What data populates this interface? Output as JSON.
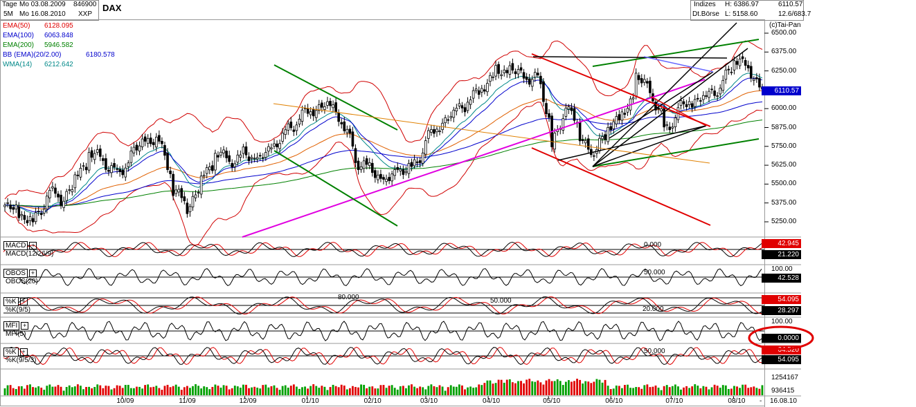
{
  "header": {
    "period_label": "Tage",
    "from_label": "Mo 03.08.2009",
    "code": "846900",
    "range_label": "5M",
    "to_label": "Mo 16.08.2010",
    "exchange_code": "XXP",
    "symbol": "DAX",
    "indices_label": "Indizes",
    "exchange_name": "Dt.Börse",
    "high_label": "H: 6386.97",
    "low_label": "L: 5158.60",
    "last_price": "6110.57",
    "change": "12.6/683.7",
    "copyright": "(c)Tai-Pan"
  },
  "indicators": [
    {
      "label": "EMA(50)",
      "value": "6128.095",
      "color": "#e00000"
    },
    {
      "label": "EMA(100)",
      "value": "6063.848",
      "color": "#0000cc"
    },
    {
      "label": "EMA(200)",
      "value": "5946.582",
      "color": "#008000"
    },
    {
      "label": "BB (EMA)(20/2.00)",
      "value": "6180.578",
      "color": "#0000cc"
    },
    {
      "label": "WMA(14)",
      "value": "6212.642",
      "color": "#008888"
    }
  ],
  "price_axis": [
    "6500.00",
    "6375.00",
    "6250.00",
    "6125.00",
    "6000.00",
    "5875.00",
    "5750.00",
    "5625.00",
    "5500.00",
    "5375.00",
    "5250.00"
  ],
  "price_tag": "6110.57",
  "panels": [
    {
      "button": "MACD",
      "name": "MACD(12/26/9)",
      "level_label": "0.000",
      "value1": "42.945",
      "value2": "21.220",
      "color1": "#e00000",
      "color2": "#000000"
    },
    {
      "button": "OBOS",
      "name": "OBOS(20)",
      "level_label": "50.000",
      "axis_top": "100.00",
      "value1": "42.528",
      "color1": "#000000"
    },
    {
      "button": "%K",
      "name": "%K(9/5)",
      "level_label": "50.000",
      "level_hi": "80.000",
      "level_lo": "20.000",
      "value1": "54.095",
      "value2": "28.297",
      "color1": "#e00000",
      "color2": "#000000"
    },
    {
      "button": "MFI",
      "name": "MFI(5)",
      "axis_top": "100.00",
      "value1": "0.0000",
      "color1": "#000000"
    },
    {
      "button": "%K",
      "name": "%K(9/5/3)",
      "level_label": "50.000",
      "value1": "64.520",
      "value2": "54.095",
      "color1": "#e00000",
      "color2": "#000000"
    }
  ],
  "volume_axis": [
    "1254167",
    "936415"
  ],
  "x_axis": [
    "10/09",
    "11/09",
    "12/09",
    "01/10",
    "02/10",
    "03/10",
    "04/10",
    "05/10",
    "06/10",
    "07/10",
    "08/10"
  ],
  "x_end_label": "16.08.10",
  "chart_data": {
    "type": "candlestick",
    "title": "DAX",
    "x_start": "2009-08-03",
    "x_end": "2010-08-16",
    "ylim": [
      5150,
      6520
    ],
    "close_path": [
      [
        "2009-08-03",
        5350
      ],
      [
        "2009-08-10",
        5300
      ],
      [
        "2009-08-17",
        5250
      ],
      [
        "2009-08-24",
        5450
      ],
      [
        "2009-08-31",
        5400
      ],
      [
        "2009-09-07",
        5550
      ],
      [
        "2009-09-14",
        5700
      ],
      [
        "2009-09-21",
        5650
      ],
      [
        "2009-09-28",
        5550
      ],
      [
        "2009-10-05",
        5700
      ],
      [
        "2009-10-12",
        5800
      ],
      [
        "2009-10-19",
        5780
      ],
      [
        "2009-10-26",
        5450
      ],
      [
        "2009-11-02",
        5350
      ],
      [
        "2009-11-09",
        5550
      ],
      [
        "2009-11-16",
        5700
      ],
      [
        "2009-11-23",
        5650
      ],
      [
        "2009-11-30",
        5700
      ],
      [
        "2009-12-07",
        5650
      ],
      [
        "2009-12-14",
        5750
      ],
      [
        "2009-12-21",
        5850
      ],
      [
        "2009-12-28",
        5950
      ],
      [
        "2010-01-04",
        6000
      ],
      [
        "2010-01-11",
        6050
      ],
      [
        "2010-01-18",
        5900
      ],
      [
        "2010-01-25",
        5650
      ],
      [
        "2010-02-01",
        5600
      ],
      [
        "2010-02-08",
        5500
      ],
      [
        "2010-02-15",
        5600
      ],
      [
        "2010-02-22",
        5600
      ],
      [
        "2010-03-01",
        5800
      ],
      [
        "2010-03-08",
        5900
      ],
      [
        "2010-03-15",
        6000
      ],
      [
        "2010-03-22",
        6050
      ],
      [
        "2010-03-29",
        6150
      ],
      [
        "2010-04-05",
        6250
      ],
      [
        "2010-04-12",
        6250
      ],
      [
        "2010-04-19",
        6200
      ],
      [
        "2010-04-26",
        6200
      ],
      [
        "2010-05-03",
        5750
      ],
      [
        "2010-05-10",
        6050
      ],
      [
        "2010-05-17",
        5800
      ],
      [
        "2010-05-24",
        5700
      ],
      [
        "2010-05-31",
        5900
      ],
      [
        "2010-06-07",
        5950
      ],
      [
        "2010-06-14",
        6200
      ],
      [
        "2010-06-21",
        6100
      ],
      [
        "2010-06-28",
        5850
      ],
      [
        "2010-07-05",
        6000
      ],
      [
        "2010-07-12",
        6050
      ],
      [
        "2010-07-19",
        6100
      ],
      [
        "2010-07-26",
        6150
      ],
      [
        "2010-08-02",
        6350
      ],
      [
        "2010-08-09",
        6250
      ],
      [
        "2010-08-16",
        6110.57
      ]
    ],
    "series": [
      {
        "name": "EMA(50)",
        "last": 6128.095
      },
      {
        "name": "EMA(100)",
        "last": 6063.848
      },
      {
        "name": "EMA(200)",
        "last": 5946.582
      },
      {
        "name": "BB (EMA)(20/2.00)",
        "last": 6180.578
      },
      {
        "name": "WMA(14)",
        "last": 6212.642
      }
    ],
    "high": 6386.97,
    "low": 5158.6
  }
}
